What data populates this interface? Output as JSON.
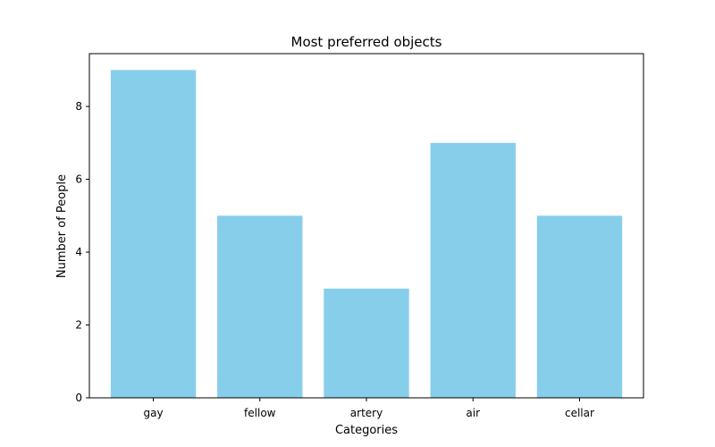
{
  "chart_data": {
    "type": "bar",
    "title": "Most preferred objects",
    "xlabel": "Categories",
    "ylabel": "Number of People",
    "categories": [
      "gay",
      "fellow",
      "artery",
      "air",
      "cellar"
    ],
    "values": [
      9,
      5,
      3,
      7,
      5
    ],
    "ylim": [
      0,
      9.45
    ],
    "yticks": [
      0,
      2,
      4,
      6,
      8
    ],
    "bar_color": "#87CEEB",
    "grid": false,
    "legend": "none"
  }
}
